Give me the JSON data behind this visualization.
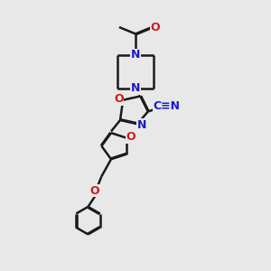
{
  "bg_color": "#e8e8e8",
  "bond_color": "#1a1a1a",
  "n_color": "#1a1acc",
  "o_color": "#cc1a1a",
  "lw": 1.8,
  "dbo": 0.038,
  "xlim": [
    0,
    10
  ],
  "ylim": [
    0,
    14
  ]
}
